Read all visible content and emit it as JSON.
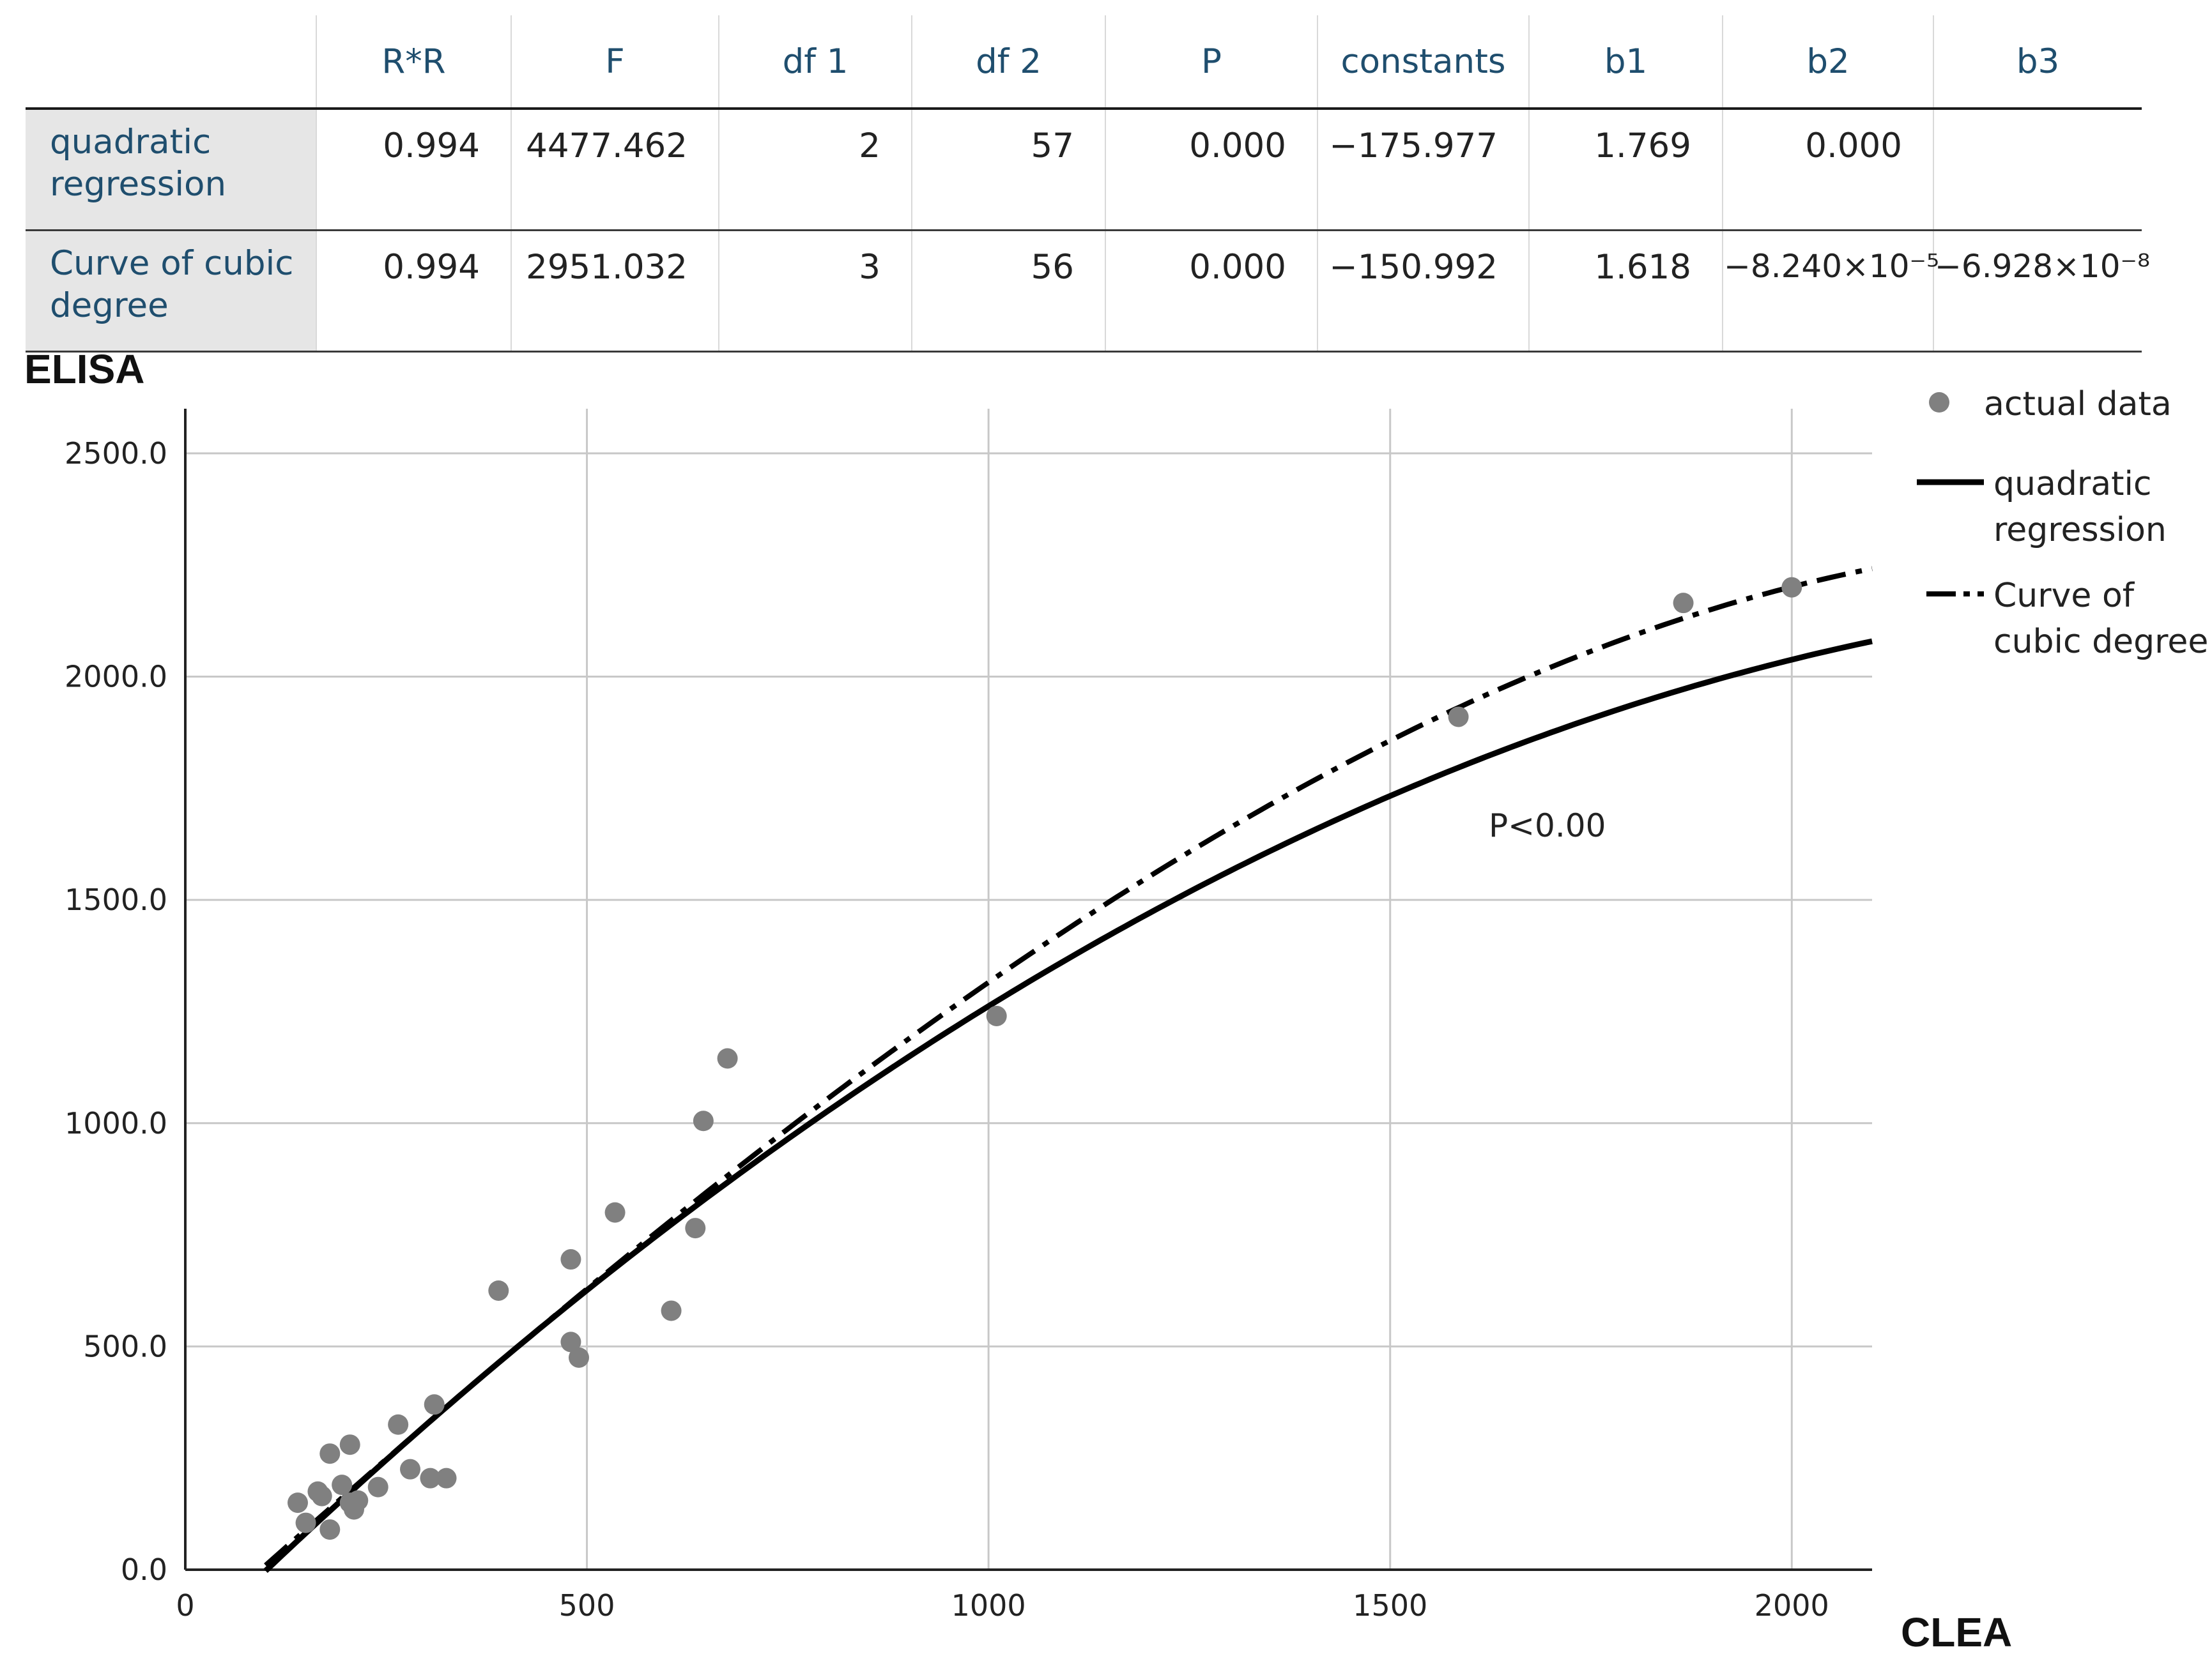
{
  "table": {
    "headers": [
      "",
      "R*R",
      "F",
      "df 1",
      "df 2",
      "P",
      "constants",
      "b1",
      "b2",
      "b3"
    ],
    "rows": [
      {
        "label": "quadratic regression",
        "cells": [
          "0.994",
          "4477.462",
          "2",
          "57",
          "0.000",
          "−175.977",
          "1.769",
          "0.000",
          ""
        ]
      },
      {
        "label": "Curve of cubic degree",
        "cells": [
          "0.994",
          "2951.032",
          "3",
          "56",
          "0.000",
          "−150.992",
          "1.618",
          "−8.240×10⁻⁵",
          "−6.928×10⁻⁸"
        ]
      }
    ]
  },
  "chart_data": {
    "type": "scatter",
    "xlabel": "CLEA",
    "ylabel": "ELISA",
    "xlim": [
      0,
      2100
    ],
    "ylim": [
      0,
      2600
    ],
    "xticks": [
      0,
      500,
      1000,
      1500,
      2000
    ],
    "yticks": [
      0,
      500,
      1000,
      1500,
      2000,
      2500
    ],
    "ytick_labels": [
      "0.0",
      "500.0",
      "1000.0",
      "1500.0",
      "2000.0",
      "2500.0"
    ],
    "grid": true,
    "legend_position": "right",
    "annotation": "P<0.00",
    "series": [
      {
        "name": "actual data",
        "kind": "points",
        "color": "#808080",
        "points": [
          [
            140,
            150
          ],
          [
            150,
            105
          ],
          [
            165,
            175
          ],
          [
            170,
            165
          ],
          [
            180,
            260
          ],
          [
            180,
            90
          ],
          [
            195,
            190
          ],
          [
            205,
            150
          ],
          [
            205,
            280
          ],
          [
            210,
            135
          ],
          [
            215,
            155
          ],
          [
            240,
            185
          ],
          [
            265,
            325
          ],
          [
            280,
            225
          ],
          [
            305,
            205
          ],
          [
            310,
            370
          ],
          [
            325,
            205
          ],
          [
            390,
            625
          ],
          [
            480,
            695
          ],
          [
            480,
            510
          ],
          [
            490,
            475
          ],
          [
            535,
            800
          ],
          [
            605,
            580
          ],
          [
            635,
            765
          ],
          [
            645,
            1005
          ],
          [
            675,
            1145
          ],
          [
            1010,
            1240
          ],
          [
            1585,
            1910
          ],
          [
            1865,
            2165
          ],
          [
            2000,
            2200
          ]
        ]
      },
      {
        "name": "quadratic regression",
        "kind": "line",
        "style": "solid",
        "color": "#000000",
        "x_range": [
          100,
          2100
        ],
        "coefficients": [
          -175.977,
          1.769,
          -0.000331
        ]
      },
      {
        "name": "Curve of cubic degree",
        "kind": "line",
        "style": "dash-dot",
        "color": "#000000",
        "x_range": [
          100,
          2100
        ],
        "coefficients": [
          -150.992,
          1.618,
          -8.24e-05,
          -6.928e-08
        ]
      }
    ],
    "legend": [
      {
        "series": "actual data",
        "lines": [
          "actual data"
        ]
      },
      {
        "series": "quadratic regression",
        "lines": [
          "quadratic",
          "regression"
        ]
      },
      {
        "series": "Curve of cubic degree",
        "lines": [
          "Curve of",
          "cubic degree"
        ]
      }
    ]
  }
}
